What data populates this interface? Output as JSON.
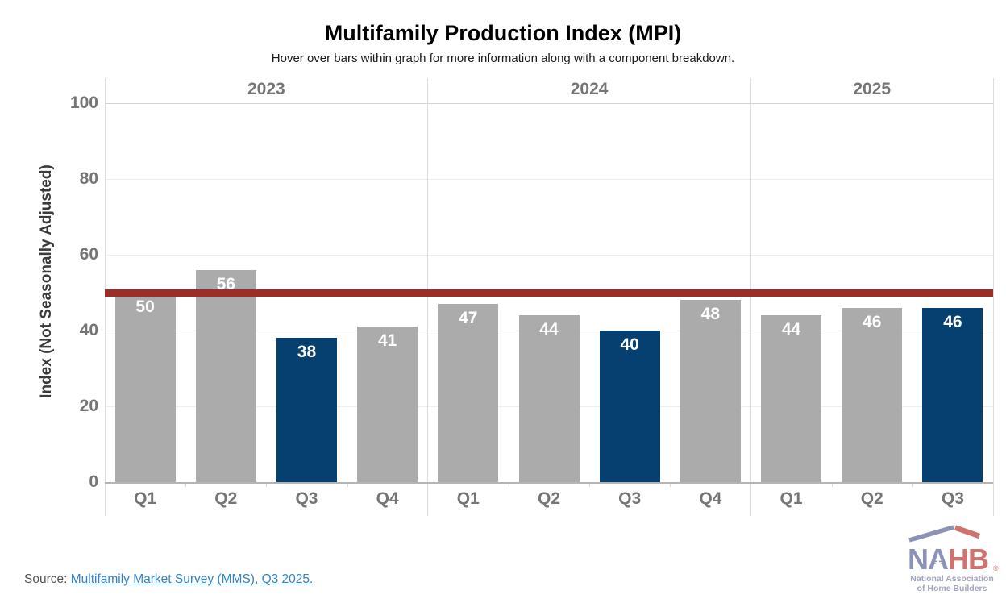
{
  "page": {
    "title": "Multifamily Production Index (MPI)",
    "subtitle": "Hover over bars within graph for more information along with a component breakdown.",
    "source_prefix": "Source: ",
    "source_link": "Multifamily Market Survey (MMS), Q3 2025."
  },
  "colors": {
    "bar_default": "#ababab",
    "bar_highlight": "#064070",
    "breakeven_line": "#9d2d26",
    "link": "#2f85c6",
    "tick_text": "#757575",
    "logo_navy": "#8d93b7",
    "logo_red": "#d0736e",
    "logo_subtitle": "#a0a5c0"
  },
  "logo": {
    "letters_primary": "NA",
    "letters_secondary": "HB",
    "registered": "®",
    "subtitle_line1": "National Association",
    "subtitle_line2": "of Home Builders"
  },
  "chart_data": {
    "type": "bar",
    "title": "Multifamily Production Index (MPI)",
    "ylabel": "Index (Not Seasonally Adjusted)",
    "ylim": [
      0,
      100
    ],
    "yticks": [
      0,
      20,
      40,
      60,
      80,
      100
    ],
    "grid": true,
    "legend": "none",
    "breakeven_value": 50,
    "groups": [
      {
        "year": "2023",
        "quarters": [
          "Q1",
          "Q2",
          "Q3",
          "Q4"
        ],
        "values": [
          50,
          56,
          38,
          41
        ],
        "highlighted": [
          "Q3"
        ]
      },
      {
        "year": "2024",
        "quarters": [
          "Q1",
          "Q2",
          "Q3",
          "Q4"
        ],
        "values": [
          47,
          44,
          40,
          48
        ],
        "highlighted": [
          "Q3"
        ]
      },
      {
        "year": "2025",
        "quarters": [
          "Q1",
          "Q2",
          "Q3"
        ],
        "values": [
          44,
          46,
          46
        ],
        "highlighted": [
          "Q3"
        ]
      }
    ]
  }
}
